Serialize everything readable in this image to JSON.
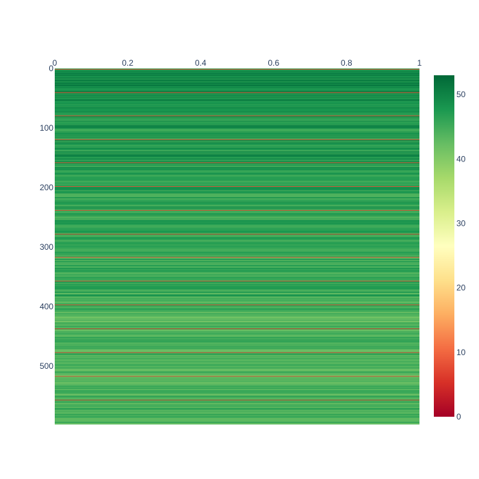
{
  "chart_data": {
    "type": "heatmap",
    "title": "",
    "xlabel": "",
    "ylabel": "",
    "x_range": [
      0,
      1
    ],
    "y_range": [
      0,
      598
    ],
    "y_reversed": true,
    "x_ticks": [
      "0",
      "0.2",
      "0.4",
      "0.6",
      "0.8",
      "1"
    ],
    "y_ticks": [
      "0",
      "100",
      "200",
      "300",
      "400",
      "500"
    ],
    "colorscale": "RdYlGn",
    "colorscale_stops": [
      [
        0.0,
        "#a50026"
      ],
      [
        0.1,
        "#d73027"
      ],
      [
        0.2,
        "#f46d43"
      ],
      [
        0.3,
        "#fdae61"
      ],
      [
        0.4,
        "#fee08b"
      ],
      [
        0.5,
        "#ffffbf"
      ],
      [
        0.6,
        "#d9ef8b"
      ],
      [
        0.7,
        "#a6d96a"
      ],
      [
        0.8,
        "#66bd63"
      ],
      [
        0.9,
        "#1a9850"
      ],
      [
        1.0,
        "#006837"
      ]
    ],
    "z_range": [
      0,
      53
    ],
    "colorbar_ticks": [
      "0",
      "10",
      "20",
      "30",
      "40",
      "50"
    ],
    "row_count": 598,
    "baseline_band_values": [
      {
        "from": 0,
        "to": 60,
        "value": 49
      },
      {
        "from": 60,
        "to": 160,
        "value": 47.5
      },
      {
        "from": 160,
        "to": 260,
        "value": 46.5
      },
      {
        "from": 260,
        "to": 400,
        "value": 45.5
      },
      {
        "from": 400,
        "to": 598,
        "value": 44
      }
    ],
    "low_value_rows": [
      {
        "row": 1,
        "value": 8
      },
      {
        "row": 40,
        "value": 8
      },
      {
        "row": 79,
        "value": 8
      },
      {
        "row": 119,
        "value": 8
      },
      {
        "row": 158,
        "value": 8
      },
      {
        "row": 198,
        "value": 8
      },
      {
        "row": 238,
        "value": 8
      },
      {
        "row": 278,
        "value": 8
      },
      {
        "row": 317,
        "value": 8
      },
      {
        "row": 357,
        "value": 8
      },
      {
        "row": 397,
        "value": 8
      },
      {
        "row": 437,
        "value": 8
      },
      {
        "row": 477,
        "value": 8
      },
      {
        "row": 517,
        "value": 8
      },
      {
        "row": 557,
        "value": 8
      }
    ]
  }
}
